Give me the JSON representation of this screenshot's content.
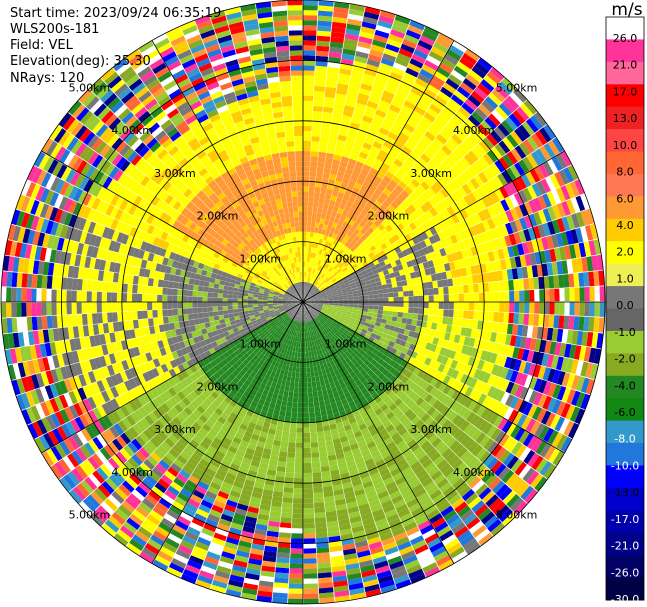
{
  "header": {
    "start_time": "Start time: 2023/09/24 06:35:19",
    "instrument": "WLS200s-181",
    "field": "Field: VEL",
    "elevation": "Elevation(deg): 35.30",
    "nrays": "NRays: 120"
  },
  "chart_data": {
    "type": "heatmap",
    "projection": "polar PPI",
    "field": "VEL",
    "units": "m/s",
    "n_rays": 120,
    "elevation_deg": 35.3,
    "max_range_km": 5.0,
    "range_rings_km": [
      1.0,
      2.0,
      3.0,
      4.0,
      5.0
    ],
    "range_ring_labels": [
      "1.00km",
      "2.00km",
      "3.00km",
      "4.00km",
      "5.00km"
    ],
    "spokes_deg": [
      0,
      30,
      60,
      90,
      120,
      150,
      180,
      210,
      240,
      270,
      300,
      330
    ],
    "colorbar": {
      "label": "m/s",
      "ticks": [
        "26.0",
        "21.0",
        "17.0",
        "13.0",
        "10.0",
        "8.0",
        "6.0",
        "4.0",
        "2.0",
        "1.0",
        "0.0",
        "-1.0",
        "-2.0",
        "-4.0",
        "-6.0",
        "-8.0",
        "-10.0",
        "-13.0",
        "-17.0",
        "-21.0",
        "-26.0",
        "-30.0"
      ],
      "colors": [
        "#ffffff",
        "#ff3399",
        "#ff6699",
        "#ff0000",
        "#ee2222",
        "#ff4444",
        "#ff6633",
        "#ff7755",
        "#ff9933",
        "#ffcc00",
        "#ffff00",
        "#eeee55",
        "#777777",
        "#666666",
        "#99cc33",
        "#88aa22",
        "#228822",
        "#118811",
        "#3399cc",
        "#2277dd",
        "#0000ff",
        "#0000cc",
        "#0000aa",
        "#000088",
        "#000066",
        "#000044"
      ]
    },
    "features": [
      {
        "region": "outer ring beyond ~3.8 km",
        "value": "noise (random, all colors)"
      },
      {
        "region": "north sector 1.2-2.5 km",
        "value_range": [
          4,
          8
        ],
        "color": "orange"
      },
      {
        "region": "north band 2.5-3.8 km",
        "value_range": [
          1,
          4
        ],
        "color": "yellow"
      },
      {
        "region": "east / southeast",
        "value_range": [
          -4,
          2
        ],
        "color": "yellow / olive"
      },
      {
        "region": "south sector 0.5-2.0 km",
        "value_range": [
          -6,
          -2
        ],
        "color": "green"
      },
      {
        "region": "west / east edges",
        "value_range": [
          -1,
          1
        ],
        "color": "gray"
      }
    ]
  }
}
